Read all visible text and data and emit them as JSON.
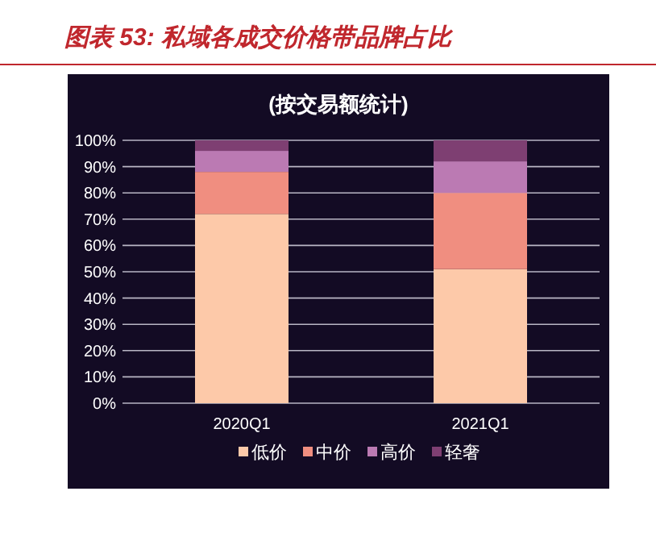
{
  "chart_data": {
    "type": "bar",
    "stacked": true,
    "title": "图表 53: 私域各成交价格带品牌占比",
    "subtitle": "(按交易额统计)",
    "categories": [
      "2020Q1",
      "2021Q1"
    ],
    "series": [
      {
        "name": "低价",
        "color": "#fdc9a9",
        "values": [
          72,
          51
        ]
      },
      {
        "name": "中价",
        "color": "#f08e80",
        "values": [
          16,
          29
        ]
      },
      {
        "name": "高价",
        "color": "#bb7ab3",
        "values": [
          8,
          12
        ]
      },
      {
        "name": "轻奢",
        "color": "#7e3f72",
        "values": [
          4,
          8
        ]
      }
    ],
    "ylim": [
      0,
      100
    ],
    "yticks": [
      {
        "value": 0,
        "label": "0%"
      },
      {
        "value": 10,
        "label": "10%"
      },
      {
        "value": 20,
        "label": "20%"
      },
      {
        "value": 30,
        "label": "30%"
      },
      {
        "value": 40,
        "label": "40%"
      },
      {
        "value": 50,
        "label": "50%"
      },
      {
        "value": 60,
        "label": "60%"
      },
      {
        "value": 70,
        "label": "70%"
      },
      {
        "value": 80,
        "label": "80%"
      },
      {
        "value": 90,
        "label": "90%"
      },
      {
        "value": 100,
        "label": "100%"
      }
    ],
    "grid": "y",
    "legend": "bottom"
  }
}
